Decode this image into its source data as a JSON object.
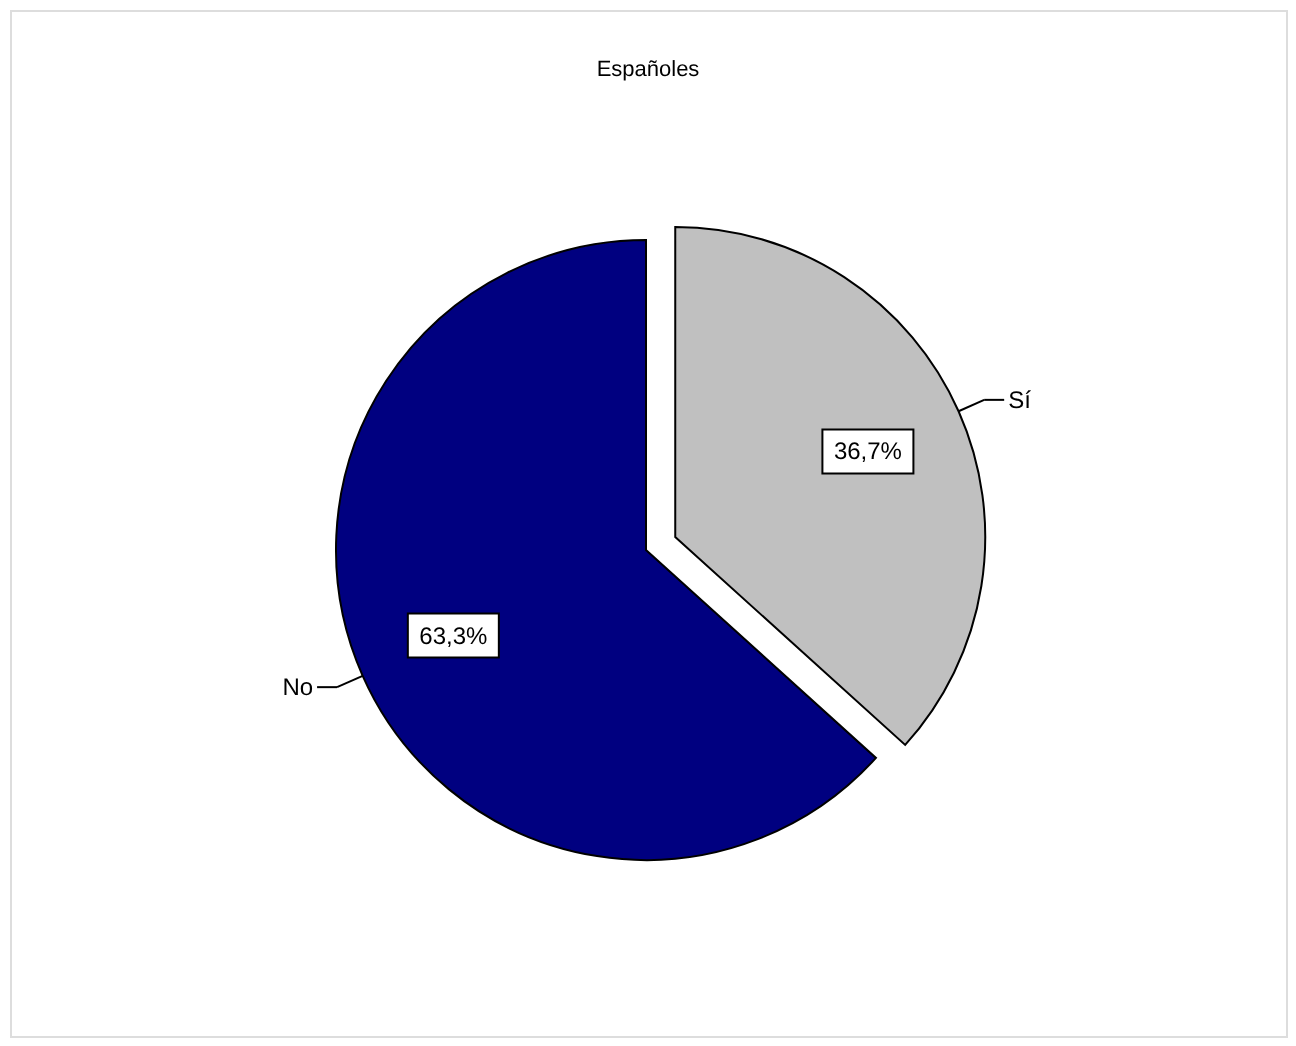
{
  "chart_data": {
    "type": "pie",
    "title": "Españoles",
    "categories": [
      "Sí",
      "No"
    ],
    "values": [
      36.7,
      63.3
    ],
    "colors": [
      "#c0c0c0",
      "#000080"
    ],
    "value_labels": [
      "36,7%",
      "63,3%"
    ]
  }
}
